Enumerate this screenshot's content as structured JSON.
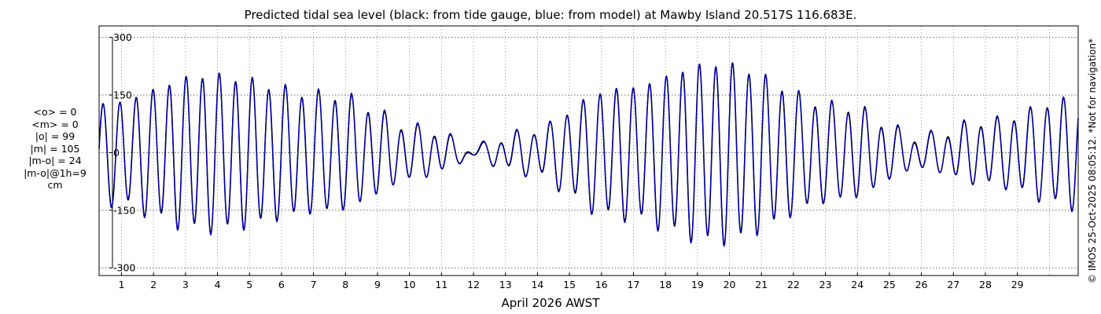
{
  "chart_data": {
    "type": "line",
    "title": "Predicted tidal sea level (black: from tide gauge, blue: from model) at Mawby Island 20.517S 116.683E.",
    "xlabel": "April 2026 AWST",
    "ylabel": "",
    "ylim": [
      -320,
      330
    ],
    "xlim_days": [
      0.3,
      30.9
    ],
    "grid": true,
    "y_ticks": [
      -300,
      -150,
      0,
      150,
      300
    ],
    "y_tick_labels": [
      "-300",
      "-150",
      "0",
      "150",
      "300"
    ],
    "x_ticks": [
      1,
      2,
      3,
      4,
      5,
      6,
      7,
      8,
      9,
      10,
      11,
      12,
      13,
      14,
      15,
      16,
      17,
      18,
      19,
      20,
      21,
      22,
      23,
      24,
      25,
      26,
      27,
      28,
      29
    ],
    "x_tick_labels": [
      "1",
      "2",
      "3",
      "4",
      "5",
      "6",
      "7",
      "8",
      "9",
      "10",
      "11",
      "12",
      "13",
      "14",
      "15",
      "16",
      "17",
      "18",
      "19",
      "20",
      "21",
      "22",
      "23",
      "24",
      "25",
      "26",
      "27",
      "28",
      "29"
    ],
    "series": [
      {
        "color": "#000000",
        "line_width": 1.6,
        "amplitude_envelope": {
          "day": [
            0.3,
            3.7,
            7.5,
            10.5,
            12.0,
            13.5,
            16.5,
            19.6,
            23.5,
            26.0,
            28.0,
            30.9
          ],
          "cm": [
            125,
            200,
            150,
            60,
            12,
            50,
            165,
            230,
            120,
            40,
            80,
            140
          ]
        }
      },
      {
        "color": "#0000cc",
        "line_width": 1.1,
        "amplitude_envelope": {
          "day": [
            0.3,
            3.7,
            7.5,
            10.5,
            12.0,
            13.5,
            16.5,
            19.6,
            23.5,
            26.0,
            28.0,
            30.9
          ],
          "cm": [
            125,
            200,
            150,
            60,
            12,
            50,
            165,
            230,
            120,
            40,
            80,
            140
          ]
        }
      }
    ],
    "annotations": [
      "© IMOS 25-Oct-2025 08:05:12. *Not for navigation*"
    ]
  },
  "stats": {
    "mean_obs": "<o> = 0",
    "mean_model": "<m> = 0",
    "abs_obs": "|o| = 99",
    "abs_model": "|m| = 105",
    "abs_diff": "|m-o| = 24",
    "abs_diff_1h": "|m-o|@1h=9",
    "unit": "cm"
  },
  "colors": {
    "observed": "#000000",
    "model": "#0000cc",
    "grid": "#888888",
    "axis": "#000000"
  }
}
